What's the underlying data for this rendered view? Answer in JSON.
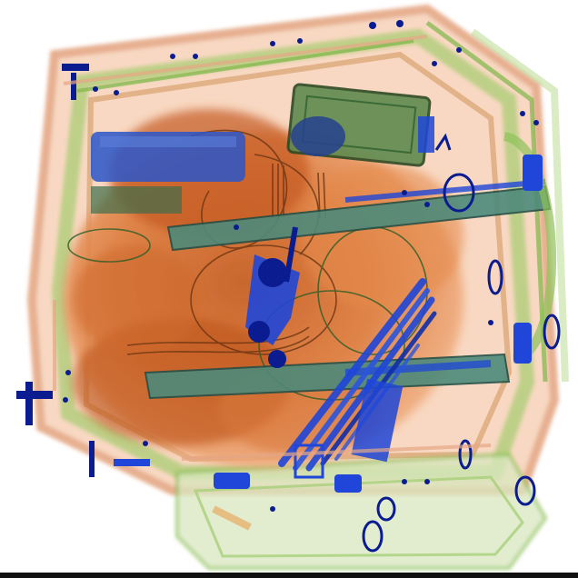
{
  "scan": {
    "image_type": "x-ray baggage scan",
    "colors": {
      "background": "#ffffff",
      "organic": "#e0793a",
      "organic_dark": "#b8541f",
      "inorganic": "#8fc25a",
      "inorganic_dark": "#4e8a3a",
      "metal": "#1f46d8",
      "metal_dark": "#0a1c8f"
    },
    "objects": [
      "suitcase-frame",
      "carry-handle",
      "zipper-tracks",
      "metal-rails",
      "electronic-device",
      "coiled-cables",
      "clothing-mass",
      "rod-bundle",
      "clips-and-rings"
    ]
  }
}
